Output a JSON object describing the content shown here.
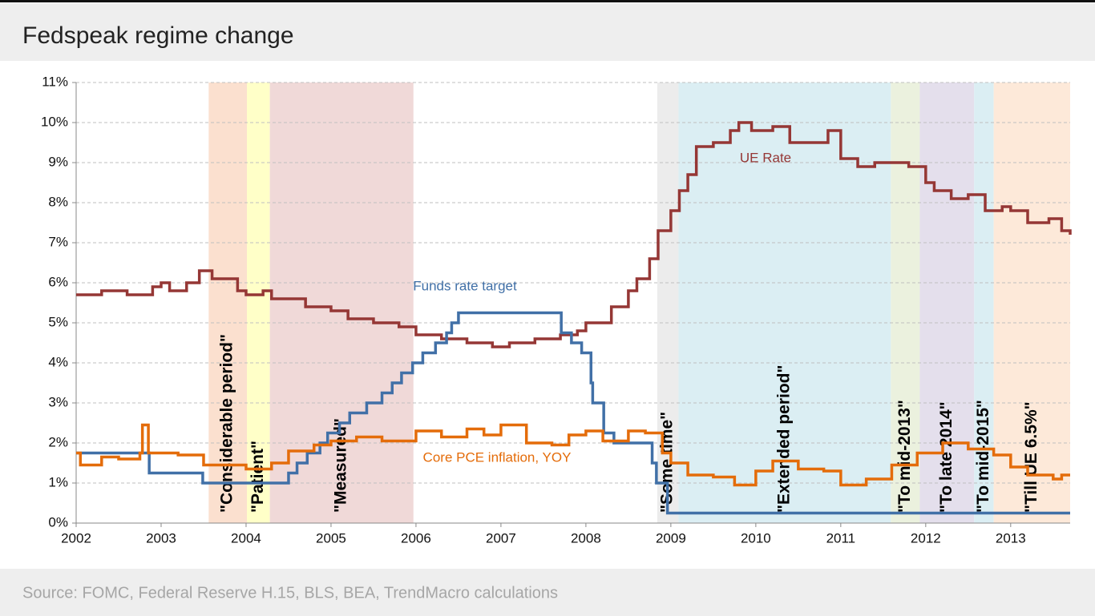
{
  "chart_data": {
    "type": "line",
    "step": true,
    "title": "Fedspeak regime change",
    "source": "Source: FOMC, Federal Reserve H.15, BLS, BEA, TrendMacro calculations",
    "xlim": [
      2002,
      2013.7
    ],
    "xticks": [
      2002,
      2003,
      2004,
      2005,
      2006,
      2007,
      2008,
      2009,
      2010,
      2011,
      2012,
      2013
    ],
    "ylim": [
      0,
      11
    ],
    "yticks": [
      {
        "value": 0,
        "label": "0%"
      },
      {
        "value": 1,
        "label": "1%"
      },
      {
        "value": 2,
        "label": "2%"
      },
      {
        "value": 3,
        "label": "3%"
      },
      {
        "value": 4,
        "label": "4%"
      },
      {
        "value": 5,
        "label": "5%"
      },
      {
        "value": 6,
        "label": "6%"
      },
      {
        "value": 7,
        "label": "7%"
      },
      {
        "value": 8,
        "label": "8%"
      },
      {
        "value": 9,
        "label": "9%"
      },
      {
        "value": 10,
        "label": "10%"
      },
      {
        "value": 11,
        "label": "11%"
      }
    ],
    "grid": true,
    "regions": [
      {
        "label": "\"Considerable period\"",
        "start": 2003.56,
        "end": 2004.01,
        "color": "#fbe0cf"
      },
      {
        "label": "\"Patient\"",
        "start": 2004.01,
        "end": 2004.28,
        "color": "#ffffc8"
      },
      {
        "label": "\"Measured\"",
        "start": 2004.28,
        "end": 2005.97,
        "color": "#f0d9d8"
      },
      {
        "label": "\"Some time\"",
        "start": 2008.84,
        "end": 2009.09,
        "color": "#ececec"
      },
      {
        "label": "\"Extended period\"",
        "start": 2009.09,
        "end": 2011.59,
        "color": "#dbeef3"
      },
      {
        "label": "\"To mid-2013\"",
        "start": 2011.59,
        "end": 2011.93,
        "color": "#ebf1de"
      },
      {
        "label": "\"To late 2014\"",
        "start": 2011.93,
        "end": 2012.57,
        "color": "#e4dfec"
      },
      {
        "label": "\"To mid-2015\"",
        "start": 2012.57,
        "end": 2012.8,
        "color": "#dbeef3"
      },
      {
        "label": "\"Till UE 6.5%\"",
        "start": 2012.8,
        "end": 2013.7,
        "color": "#fde9d9"
      }
    ],
    "series": [
      {
        "name": "UE Rate",
        "color": "#953735",
        "x": [
          2002.0,
          2002.3,
          2002.6,
          2002.9,
          2003.0,
          2003.1,
          2003.3,
          2003.45,
          2003.6,
          2003.9,
          2004.0,
          2004.2,
          2004.3,
          2004.7,
          2005.0,
          2005.2,
          2005.5,
          2005.8,
          2006.0,
          2006.3,
          2006.6,
          2006.9,
          2007.1,
          2007.4,
          2007.7,
          2007.9,
          2008.0,
          2008.3,
          2008.5,
          2008.6,
          2008.75,
          2008.85,
          2009.0,
          2009.1,
          2009.2,
          2009.3,
          2009.5,
          2009.7,
          2009.8,
          2009.95,
          2010.2,
          2010.4,
          2010.5,
          2010.85,
          2011.0,
          2011.2,
          2011.4,
          2011.6,
          2011.8,
          2012.0,
          2012.1,
          2012.3,
          2012.5,
          2012.7,
          2012.9,
          2013.0,
          2013.2,
          2013.45,
          2013.6,
          2013.7
        ],
        "values": [
          5.7,
          5.8,
          5.7,
          5.9,
          6.0,
          5.8,
          6.0,
          6.3,
          6.1,
          5.8,
          5.7,
          5.8,
          5.6,
          5.4,
          5.3,
          5.1,
          5.0,
          4.9,
          4.7,
          4.6,
          4.5,
          4.4,
          4.5,
          4.6,
          4.7,
          4.8,
          5.0,
          5.4,
          5.8,
          6.1,
          6.6,
          7.3,
          7.8,
          8.3,
          8.7,
          9.4,
          9.5,
          9.8,
          10.0,
          9.8,
          9.9,
          9.5,
          9.5,
          9.8,
          9.1,
          8.9,
          9.0,
          9.0,
          8.9,
          8.5,
          8.3,
          8.1,
          8.2,
          7.8,
          7.9,
          7.8,
          7.5,
          7.6,
          7.3,
          7.2
        ]
      },
      {
        "name": "Funds rate target",
        "color": "#4170a7",
        "x": [
          2002.0,
          2002.86,
          2003.49,
          2004.5,
          2004.6,
          2004.72,
          2004.87,
          2004.96,
          2005.1,
          2005.22,
          2005.42,
          2005.6,
          2005.72,
          2005.83,
          2005.96,
          2006.08,
          2006.23,
          2006.36,
          2006.42,
          2006.5,
          2007.71,
          2007.83,
          2007.95,
          2008.06,
          2008.08,
          2008.21,
          2008.33,
          2008.78,
          2008.83,
          2008.96,
          2013.7
        ],
        "values": [
          1.75,
          1.25,
          1.0,
          1.25,
          1.5,
          1.75,
          2.0,
          2.25,
          2.5,
          2.75,
          3.0,
          3.25,
          3.5,
          3.75,
          4.0,
          4.25,
          4.5,
          4.75,
          5.0,
          5.25,
          4.75,
          4.5,
          4.25,
          3.5,
          3.0,
          2.25,
          2.0,
          1.5,
          1.0,
          0.25,
          0.25
        ]
      },
      {
        "name": "Core PCE inflation, YOY",
        "color": "#e46c0a",
        "x": [
          2002.0,
          2002.05,
          2002.3,
          2002.5,
          2002.75,
          2002.78,
          2002.85,
          2003.2,
          2003.5,
          2003.8,
          2004.0,
          2004.3,
          2004.5,
          2004.8,
          2005.0,
          2005.3,
          2005.6,
          2006.0,
          2006.3,
          2006.6,
          2006.8,
          2007.0,
          2007.3,
          2007.6,
          2007.8,
          2008.0,
          2008.2,
          2008.5,
          2008.7,
          2008.9,
          2009.0,
          2009.2,
          2009.5,
          2009.75,
          2010.0,
          2010.2,
          2010.5,
          2010.8,
          2011.0,
          2011.3,
          2011.6,
          2011.9,
          2012.2,
          2012.5,
          2012.8,
          2013.0,
          2013.2,
          2013.5,
          2013.6,
          2013.7
        ],
        "values": [
          1.75,
          1.45,
          1.65,
          1.6,
          1.75,
          2.45,
          1.75,
          1.7,
          1.45,
          1.45,
          1.35,
          1.5,
          1.8,
          1.95,
          2.05,
          2.15,
          2.05,
          2.3,
          2.15,
          2.35,
          2.2,
          2.45,
          2.0,
          1.95,
          2.2,
          2.3,
          2.05,
          2.3,
          2.25,
          1.75,
          1.5,
          1.2,
          1.15,
          0.95,
          1.3,
          1.55,
          1.35,
          1.3,
          0.95,
          1.1,
          1.45,
          1.75,
          2.0,
          1.85,
          1.7,
          1.4,
          1.2,
          1.1,
          1.2,
          1.2
        ]
      }
    ]
  }
}
